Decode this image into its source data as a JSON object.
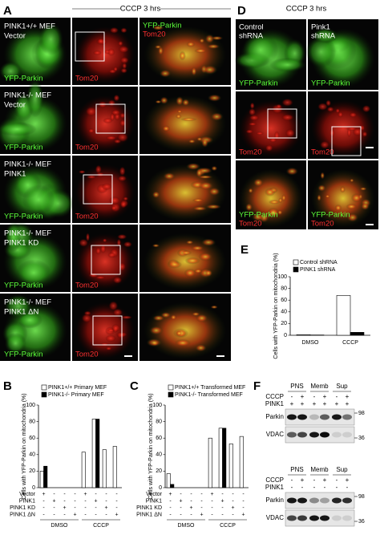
{
  "panel_labels": [
    "A",
    "B",
    "C",
    "D",
    "E",
    "F"
  ],
  "panel_a": {
    "title": "CCCP 3 hrs",
    "green": "YFP-Parkin",
    "red": "Tom20",
    "rows": [
      {
        "genotype": "PINK1+/+ MEF",
        "construct": "Vector"
      },
      {
        "genotype": "PINK1-/- MEF",
        "construct": "Vector"
      },
      {
        "genotype": "PINK1-/- MEF",
        "construct": "PINK1"
      },
      {
        "genotype": "PINK1-/- MEF",
        "construct": "PINK1 KD"
      },
      {
        "genotype": "PINK1-/- MEF",
        "construct": "PINK1 ΔN"
      }
    ]
  },
  "panel_d": {
    "title": "CCCP 3 hrs",
    "columns": [
      [
        "Control",
        "shRNA"
      ],
      [
        "Pink1",
        "shRNA"
      ]
    ],
    "green": "YFP-Parkin",
    "red": "Tom20"
  },
  "chart_data": [
    {
      "type": "bar",
      "ylabel": "Cells with YFP-Parkin on mitochondria (%)",
      "ylim": [
        0,
        100
      ],
      "yticks": [
        0,
        20,
        40,
        60,
        80,
        100
      ],
      "categories": [
        null,
        null,
        null,
        null,
        null,
        null,
        null,
        null
      ],
      "series": [
        {
          "name": "PINK1+/+ Primary MEF",
          "color": "#ffffff",
          "values": [
            20,
            0,
            0,
            0,
            43,
            83,
            46,
            50
          ]
        },
        {
          "name": "PINK1-/- Primary MEF",
          "color": "#000000",
          "values": [
            26,
            0,
            0,
            0,
            0,
            83,
            0,
            0
          ]
        }
      ],
      "condition_rows": [
        {
          "label": "Vector",
          "signs": [
            "+",
            "-",
            "-",
            "-",
            "+",
            "-",
            "-",
            "-"
          ]
        },
        {
          "label": "PINK1",
          "signs": [
            "-",
            "+",
            "-",
            "-",
            "-",
            "+",
            "-",
            "-"
          ]
        },
        {
          "label": "PINK1 KD",
          "signs": [
            "-",
            "-",
            "+",
            "-",
            "-",
            "-",
            "+",
            "-"
          ]
        },
        {
          "label": "PINK1 ΔN",
          "signs": [
            "-",
            "-",
            "-",
            "+",
            "-",
            "-",
            "-",
            "+"
          ]
        }
      ],
      "group_labels": [
        "DMSO",
        "CCCP"
      ]
    },
    {
      "type": "bar",
      "ylabel": "Cells with YFP-Parkin on mitochondria (%)",
      "ylim": [
        0,
        100
      ],
      "yticks": [
        0,
        20,
        40,
        60,
        80,
        100
      ],
      "categories": [
        null,
        null,
        null,
        null,
        null,
        null,
        null,
        null
      ],
      "series": [
        {
          "name": "PINK1+/+ Transformed MEF",
          "color": "#ffffff",
          "values": [
            17,
            0,
            0,
            0,
            60,
            72,
            53,
            62
          ]
        },
        {
          "name": "PINK1-/- Transformed MEF",
          "color": "#000000",
          "values": [
            4,
            0,
            0,
            0,
            0,
            72,
            0,
            0
          ]
        }
      ],
      "condition_rows": [
        {
          "label": "Vector",
          "signs": [
            "+",
            "-",
            "-",
            "-",
            "+",
            "-",
            "-",
            "-"
          ]
        },
        {
          "label": "PINK1",
          "signs": [
            "-",
            "+",
            "-",
            "-",
            "-",
            "+",
            "-",
            "-"
          ]
        },
        {
          "label": "PINK1 KD",
          "signs": [
            "-",
            "-",
            "+",
            "-",
            "-",
            "-",
            "+",
            "-"
          ]
        },
        {
          "label": "PINK1 ΔN",
          "signs": [
            "-",
            "-",
            "-",
            "+",
            "-",
            "-",
            "-",
            "+"
          ]
        }
      ],
      "group_labels": [
        "DMSO",
        "CCCP"
      ]
    },
    {
      "type": "bar",
      "ylabel": "Cells with YFP-Parkin on mitochondria (%)",
      "ylim": [
        0,
        100
      ],
      "yticks": [
        0,
        20,
        40,
        60,
        80,
        100
      ],
      "categories": [
        "DMSO",
        "CCCP"
      ],
      "series": [
        {
          "name": "Control shRNA",
          "color": "#ffffff",
          "values": [
            1,
            68
          ]
        },
        {
          "name": "PINK1 shRNA",
          "color": "#000000",
          "values": [
            0.5,
            5
          ]
        }
      ]
    }
  ],
  "panel_f": {
    "blots": [
      {
        "lanes": [
          "PNS",
          "Memb",
          "Sup"
        ],
        "rows": [
          {
            "label": "CCCP",
            "signs": [
              "-",
              "+",
              "-",
              "+",
              "-",
              "+"
            ]
          },
          {
            "label": "PINK1",
            "signs": [
              "+",
              "+",
              "+",
              "+",
              "+",
              "+"
            ]
          }
        ],
        "bands": [
          "Parkin",
          "VDAC"
        ],
        "markers": [
          "98",
          "36"
        ]
      },
      {
        "lanes": [
          "PNS",
          "Memb",
          "Sup"
        ],
        "rows": [
          {
            "label": "CCCP",
            "signs": [
              "-",
              "+",
              "-",
              "+",
              "-",
              "+"
            ]
          },
          {
            "label": "PINK1",
            "signs": [
              "-",
              "-",
              "-",
              "-",
              "-",
              "-"
            ]
          }
        ],
        "bands": [
          "Parkin",
          "VDAC"
        ],
        "markers": [
          "98",
          "36"
        ]
      }
    ]
  }
}
